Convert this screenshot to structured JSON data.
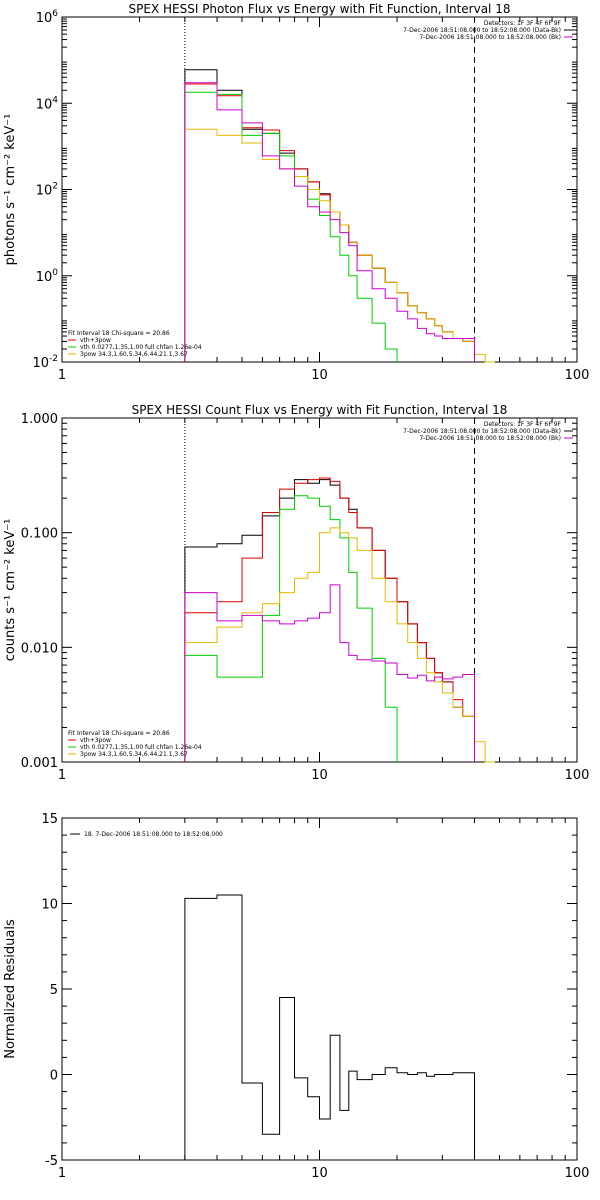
{
  "colors": {
    "black": "#000000",
    "red": "#e00000",
    "green": "#00cc00",
    "yellow": "#e6b800",
    "magenta": "#cc00cc"
  },
  "chart_data": [
    {
      "type": "line",
      "title": "SPEX HESSI Photon Flux vs Energy with Fit Function, Interval 18",
      "xlabel": "",
      "ylabel": "photons s⁻¹ cm⁻² keV⁻¹",
      "xscale": "log",
      "yscale": "log",
      "xlim": [
        1,
        100
      ],
      "ylim": [
        0.01,
        1000000
      ],
      "vlines": [
        {
          "x": 3,
          "style": "dotted"
        },
        {
          "x": 40,
          "style": "dashed"
        }
      ],
      "xticks": [
        {
          "v": 1,
          "label": "1"
        },
        {
          "v": 10,
          "label": "10"
        },
        {
          "v": 100,
          "label": "100"
        }
      ],
      "yticks": [
        {
          "v": 0.01,
          "base": "10",
          "exp": "-2"
        },
        {
          "v": 1,
          "base": "10",
          "exp": "0"
        },
        {
          "v": 100,
          "base": "10",
          "exp": "2"
        },
        {
          "v": 10000,
          "base": "10",
          "exp": "4"
        },
        {
          "v": 1000000,
          "base": "10",
          "exp": "6"
        }
      ],
      "top_right_legend": [
        {
          "text": "Detectors: 1F 3F 4F 6F 9F",
          "color": ""
        },
        {
          "text": "7-Dec-2006 18:51:08.000 to 18:52:08.000 (Data-Bk)",
          "color": "#000000"
        },
        {
          "text": "7-Dec-2006 18:51:08.000 to 18:52:08.000 (Bk)",
          "color": "#cc00cc"
        }
      ],
      "bottom_left_legend": [
        {
          "text": "Fit Interval 18    Chi-square = 20.86",
          "color": ""
        },
        {
          "text": "vth+3pow",
          "color": "#e00000"
        },
        {
          "text": "vth 0.0277,1.35,1.00  full chfan 1.26e-04",
          "color": "#00cc00"
        },
        {
          "text": "3pow 34.3,1.60,5.34,6.44,21.1,3.67",
          "color": "#e6b800"
        }
      ],
      "series": [
        {
          "color": "#000000",
          "edges": [
            3,
            4,
            5,
            6,
            7,
            8,
            9,
            10,
            11,
            12,
            13,
            14,
            16,
            18,
            20,
            22,
            24,
            26,
            28,
            30,
            33,
            36,
            40
          ],
          "values": [
            60000,
            20000,
            2500,
            2000,
            700,
            300,
            150,
            80,
            30,
            15,
            6,
            3,
            1.5,
            0.7,
            0.4,
            0.2,
            0.14,
            0.1,
            0.07,
            0.05,
            0.035,
            0.03
          ]
        },
        {
          "color": "#e00000",
          "edges": [
            3,
            4,
            5,
            6,
            7,
            8,
            9,
            10,
            11,
            12,
            13,
            14,
            16,
            18,
            20,
            22,
            24,
            26,
            28,
            30,
            33,
            36,
            40
          ],
          "values": [
            28000,
            15000,
            2700,
            2400,
            800,
            300,
            150,
            75,
            30,
            15,
            6,
            3,
            1.5,
            0.7,
            0.4,
            0.2,
            0.14,
            0.1,
            0.07,
            0.05,
            0.035,
            0.03
          ]
        },
        {
          "color": "#00cc00",
          "edges": [
            3,
            4,
            5,
            6,
            7,
            8,
            9,
            10,
            11,
            12,
            13,
            14,
            16,
            18,
            20
          ],
          "values": [
            18000,
            16000,
            1800,
            2000,
            600,
            200,
            60,
            25,
            8,
            3,
            1,
            0.3,
            0.08,
            0.02
          ]
        },
        {
          "color": "#e6b800",
          "edges": [
            3,
            4,
            5,
            6,
            7,
            8,
            9,
            10,
            11,
            12,
            13,
            14,
            16,
            18,
            20,
            22,
            24,
            26,
            28,
            30,
            33,
            36,
            40,
            44,
            48
          ],
          "values": [
            2500,
            1800,
            1200,
            500,
            300,
            200,
            100,
            55,
            30,
            15,
            6,
            3,
            1.5,
            0.7,
            0.4,
            0.2,
            0.14,
            0.1,
            0.07,
            0.05,
            0.035,
            0.03,
            0.015,
            0.008
          ]
        },
        {
          "color": "#cc00cc",
          "edges": [
            3,
            4,
            5,
            6,
            7,
            8,
            9,
            10,
            11,
            12,
            13,
            14,
            16,
            18,
            20,
            22,
            24,
            26,
            28,
            30,
            33,
            36,
            40
          ],
          "values": [
            30000,
            7000,
            3500,
            600,
            300,
            120,
            40,
            30,
            20,
            10,
            5,
            1.3,
            0.5,
            0.3,
            0.15,
            0.1,
            0.06,
            0.045,
            0.04,
            0.035,
            0.035,
            0.035
          ]
        }
      ]
    },
    {
      "type": "line",
      "title": "SPEX HESSI Count Flux vs Energy with Fit Function, Interval 18",
      "xlabel": "",
      "ylabel": "counts s⁻¹ cm⁻² keV⁻¹",
      "xscale": "log",
      "yscale": "log",
      "xlim": [
        1,
        100
      ],
      "ylim": [
        0.001,
        1.0
      ],
      "vlines": [
        {
          "x": 3,
          "style": "dotted"
        },
        {
          "x": 40,
          "style": "dashed"
        }
      ],
      "xticks": [
        {
          "v": 1,
          "label": "1"
        },
        {
          "v": 10,
          "label": "10"
        },
        {
          "v": 100,
          "label": "100"
        }
      ],
      "yticks": [
        {
          "v": 0.001,
          "label": "0.001"
        },
        {
          "v": 0.01,
          "label": "0.010"
        },
        {
          "v": 0.1,
          "label": "0.100"
        },
        {
          "v": 1.0,
          "label": "1.000"
        }
      ],
      "top_right_legend": [
        {
          "text": "Detectors: 1F 3F 4F 6F 9F",
          "color": ""
        },
        {
          "text": "7-Dec-2006 18:51:08.000 to 18:52:08.000 (Data-Bk)",
          "color": "#000000"
        },
        {
          "text": "7-Dec-2006 18:51:08.000 to 18:52:08.000 (Bk)",
          "color": "#cc00cc"
        }
      ],
      "bottom_left_legend": [
        {
          "text": "Fit Interval 18    Chi-square = 20.86",
          "color": ""
        },
        {
          "text": "vth+3pow",
          "color": "#e00000"
        },
        {
          "text": "vth 0.0277,1.35,1.00  full chfan 1.26e-04",
          "color": "#00cc00"
        },
        {
          "text": "3pow 34.3,1.60,5.34,6.44,21.1,3.67",
          "color": "#e6b800"
        }
      ],
      "series": [
        {
          "color": "#000000",
          "edges": [
            3,
            4,
            5,
            6,
            7,
            8,
            9,
            10,
            11,
            12,
            13,
            14,
            16,
            18,
            20,
            22,
            24,
            26,
            28,
            30,
            33,
            36,
            40
          ],
          "values": [
            0.075,
            0.08,
            0.095,
            0.14,
            0.2,
            0.29,
            0.27,
            0.29,
            0.26,
            0.2,
            0.16,
            0.11,
            0.07,
            0.04,
            0.025,
            0.016,
            0.011,
            0.008,
            0.006,
            0.005,
            0.003,
            0.0025
          ]
        },
        {
          "color": "#e00000",
          "edges": [
            3,
            4,
            5,
            6,
            7,
            8,
            9,
            10,
            11,
            12,
            13,
            14,
            16,
            18,
            20,
            22,
            24,
            26,
            28,
            30,
            33,
            36,
            40
          ],
          "values": [
            0.02,
            0.025,
            0.06,
            0.15,
            0.24,
            0.27,
            0.29,
            0.3,
            0.28,
            0.2,
            0.15,
            0.11,
            0.07,
            0.04,
            0.025,
            0.016,
            0.011,
            0.008,
            0.006,
            0.005,
            0.0035,
            0.0025
          ]
        },
        {
          "color": "#00cc00",
          "edges": [
            3,
            4,
            5,
            6,
            7,
            8,
            9,
            10,
            11,
            12,
            13,
            14,
            16,
            18,
            20
          ],
          "values": [
            0.0085,
            0.0055,
            0.0055,
            0.019,
            0.16,
            0.21,
            0.2,
            0.17,
            0.13,
            0.09,
            0.045,
            0.022,
            0.008,
            0.003
          ]
        },
        {
          "color": "#e6b800",
          "edges": [
            3,
            4,
            5,
            6,
            7,
            8,
            9,
            10,
            11,
            12,
            13,
            14,
            16,
            18,
            20,
            22,
            24,
            26,
            28,
            30,
            33,
            36,
            40,
            44,
            48
          ],
          "values": [
            0.011,
            0.015,
            0.02,
            0.024,
            0.03,
            0.04,
            0.045,
            0.1,
            0.11,
            0.1,
            0.09,
            0.07,
            0.04,
            0.025,
            0.016,
            0.011,
            0.008,
            0.006,
            0.005,
            0.004,
            0.003,
            0.0025,
            0.0015,
            0.0008
          ]
        },
        {
          "color": "#cc00cc",
          "edges": [
            3,
            4,
            5,
            6,
            7,
            8,
            9,
            10,
            11,
            12,
            13,
            14,
            16,
            18,
            20,
            22,
            24,
            26,
            28,
            30,
            33,
            36,
            40
          ],
          "values": [
            0.03,
            0.017,
            0.019,
            0.017,
            0.016,
            0.017,
            0.018,
            0.02,
            0.035,
            0.011,
            0.0085,
            0.0078,
            0.0076,
            0.0073,
            0.0058,
            0.0054,
            0.0057,
            0.0051,
            0.0055,
            0.0053,
            0.0055,
            0.0058
          ]
        }
      ]
    },
    {
      "type": "line",
      "title": "",
      "xlabel": "",
      "ylabel": "Normalized Residuals",
      "xscale": "log",
      "yscale": "linear",
      "xlim": [
        1,
        100
      ],
      "ylim": [
        -5,
        15
      ],
      "xticks": [
        {
          "v": 1,
          "label": "1"
        },
        {
          "v": 10,
          "label": "10"
        },
        {
          "v": 100,
          "label": "100"
        }
      ],
      "yticks": [
        {
          "v": -5,
          "label": "-5"
        },
        {
          "v": 0,
          "label": "0"
        },
        {
          "v": 5,
          "label": "5"
        },
        {
          "v": 10,
          "label": "10"
        },
        {
          "v": 15,
          "label": "15"
        }
      ],
      "top_left_legend": [
        {
          "text": "18.  7-Dec-2006 18:51:08.000 to 18:52:08.000",
          "color": "#000000"
        }
      ],
      "series": [
        {
          "color": "#000000",
          "edges": [
            3,
            4,
            5,
            6,
            7,
            8,
            9,
            10,
            11,
            12,
            13,
            14,
            16,
            18,
            20,
            22,
            24,
            26,
            28,
            30,
            33,
            36,
            40
          ],
          "values": [
            10.3,
            10.5,
            -0.5,
            -3.5,
            4.5,
            -0.2,
            -1.3,
            -2.6,
            2.3,
            -2.1,
            0.2,
            -0.3,
            0.0,
            0.4,
            0.1,
            0.0,
            0.1,
            -0.1,
            0.0,
            0.0,
            0.1,
            0.1
          ]
        }
      ]
    }
  ]
}
